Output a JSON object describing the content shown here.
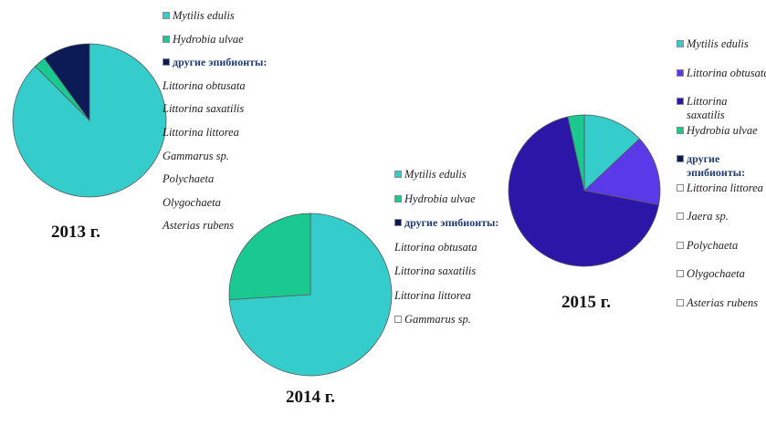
{
  "colors": {
    "mytilis": "#35CCCC",
    "hydrobia": "#19C990",
    "littorina_obtusata": "#5A3AE8",
    "littorina_saxatilis": "#2C16A8",
    "other": "#0C1A55",
    "empty": "#FFFFFF"
  },
  "chart_data": [
    {
      "type": "pie",
      "title": "2013 г.",
      "slices": [
        {
          "label": "Mytilis edulis",
          "value": 87.5,
          "color": "#35CCCC"
        },
        {
          "label": "Hydrobia ulvae",
          "value": 2.5,
          "color": "#19C990"
        },
        {
          "label": "другие эпибионты:",
          "value": 10.0,
          "color": "#0C1A55"
        }
      ],
      "legend": [
        {
          "label": "Mytilis edulis",
          "swatch": "#35CCCC",
          "style": "swatch"
        },
        {
          "label": "Hydrobia ulvae",
          "swatch": "#19C990",
          "style": "swatch"
        },
        {
          "label": "другие эпибионты:",
          "swatch": "#0C1A55",
          "style": "bold"
        },
        {
          "label": "Littorina obtusata",
          "style": "plain"
        },
        {
          "label": "Littorina saxatilis",
          "style": "plain"
        },
        {
          "label": "Littorina littorea",
          "style": "plain"
        },
        {
          "label": "Gammarus sp.",
          "style": "plain"
        },
        {
          "label": "Polychaeta",
          "style": "plain"
        },
        {
          "label": "Olygochaeta",
          "style": "plain"
        },
        {
          "label": "Asterias rubens",
          "style": "plain"
        }
      ]
    },
    {
      "type": "pie",
      "title": "2014 г.",
      "slices": [
        {
          "label": "Mytilis edulis",
          "value": 74,
          "color": "#35CCCC"
        },
        {
          "label": "Hydrobia ulvae",
          "value": 26,
          "color": "#19C990"
        }
      ],
      "legend": [
        {
          "label": "Mytilis edulis",
          "swatch": "#35CCCC",
          "style": "swatch"
        },
        {
          "label": "Hydrobia ulvae",
          "swatch": "#19C990",
          "style": "swatch"
        },
        {
          "label": "другие эпибионты:",
          "swatch": "#0C1A55",
          "style": "bold"
        },
        {
          "label": "Littorina obtusata",
          "style": "plain"
        },
        {
          "label": "Littorina saxatilis",
          "style": "plain"
        },
        {
          "label": "Littorina littorea",
          "style": "plain"
        },
        {
          "label": "Gammarus sp.",
          "swatch": "#FFFFFF",
          "style": "swatch"
        }
      ]
    },
    {
      "type": "pie",
      "title": "2015 г.",
      "slices": [
        {
          "label": "Mytilis edulis",
          "value": 13,
          "color": "#35CCCC"
        },
        {
          "label": "Littorina obtusata",
          "value": 15,
          "color": "#5A3AE8"
        },
        {
          "label": "Littorina saxatilis",
          "value": 68.5,
          "color": "#2C16A8"
        },
        {
          "label": "Hydrobia ulvae",
          "value": 3.5,
          "color": "#19C990"
        }
      ],
      "legend": [
        {
          "label": "Mytilis edulis",
          "swatch": "#35CCCC",
          "style": "swatch"
        },
        {
          "label": "Littorina obtusata",
          "swatch": "#5A3AE8",
          "style": "swatch"
        },
        {
          "label": "Littorina saxatilis",
          "swatch": "#2C16A8",
          "style": "swatch"
        },
        {
          "label": "Hydrobia ulvae",
          "swatch": "#19C990",
          "style": "swatch"
        },
        {
          "label": "другие эпибионты:",
          "swatch": "#0C1A55",
          "style": "bold"
        },
        {
          "label": "Littorina littorea",
          "swatch": "#FFFFFF",
          "style": "swatch"
        },
        {
          "label": "Jaera sp.",
          "swatch": "#FFFFFF",
          "style": "swatch"
        },
        {
          "label": "Polychaeta",
          "swatch": "#FFFFFF",
          "style": "swatch"
        },
        {
          "label": "Olygochaeta",
          "swatch": "#FFFFFF",
          "style": "swatch"
        },
        {
          "label": "Asterias rubens",
          "swatch": "#FFFFFF",
          "style": "swatch"
        }
      ]
    }
  ]
}
